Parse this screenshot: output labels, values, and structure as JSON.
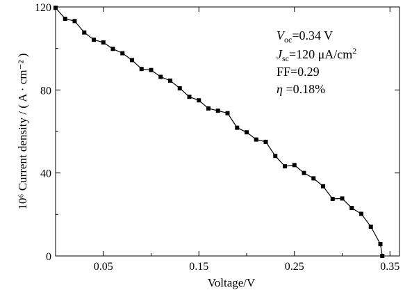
{
  "chart_data": {
    "type": "line",
    "xlabel": "Voltage/V",
    "ylabel": "10⁶ Current density / ( A · cm⁻² )",
    "xlim": [
      0,
      0.36
    ],
    "ylim": [
      0,
      120
    ],
    "x_ticks": [
      0.05,
      0.15,
      0.25,
      0.35
    ],
    "x_tick_labels": [
      "0.05",
      "0.15",
      "0.25",
      "0.35"
    ],
    "y_ticks": [
      0,
      40,
      80,
      120
    ],
    "y_tick_labels": [
      "0",
      "40",
      "80",
      "120"
    ],
    "grid": false,
    "marker": "square",
    "series": [
      {
        "x": [
          0.0,
          0.01,
          0.02,
          0.03,
          0.04,
          0.05,
          0.06,
          0.07,
          0.08,
          0.09,
          0.1,
          0.11,
          0.12,
          0.13,
          0.14,
          0.15,
          0.16,
          0.17,
          0.18,
          0.19,
          0.2,
          0.21,
          0.22,
          0.23,
          0.24,
          0.25,
          0.26,
          0.27,
          0.28,
          0.29,
          0.3,
          0.31,
          0.32,
          0.33,
          0.34,
          0.342
        ],
        "y": [
          119.6,
          114.3,
          113.2,
          107.7,
          104.2,
          102.9,
          99.8,
          97.7,
          94.4,
          90.1,
          89.6,
          86.3,
          84.5,
          80.8,
          76.7,
          75.0,
          71.1,
          70.0,
          68.8,
          61.8,
          59.6,
          56.1,
          55.0,
          48.2,
          43.2,
          43.8,
          40.0,
          37.4,
          33.6,
          27.5,
          27.7,
          23.1,
          20.3,
          14.1,
          5.7,
          0.0
        ]
      }
    ]
  },
  "annotations": {
    "voc_symbol": "V",
    "voc_sub": "oc",
    "voc_value": "=0.34 V",
    "jsc_symbol": "J",
    "jsc_sub": "sc",
    "jsc_value": "=120  μA/cm",
    "jsc_sup": "2",
    "ff_text": "FF=0.29",
    "eta_symbol": "η",
    "eta_value": " =0.18%"
  }
}
